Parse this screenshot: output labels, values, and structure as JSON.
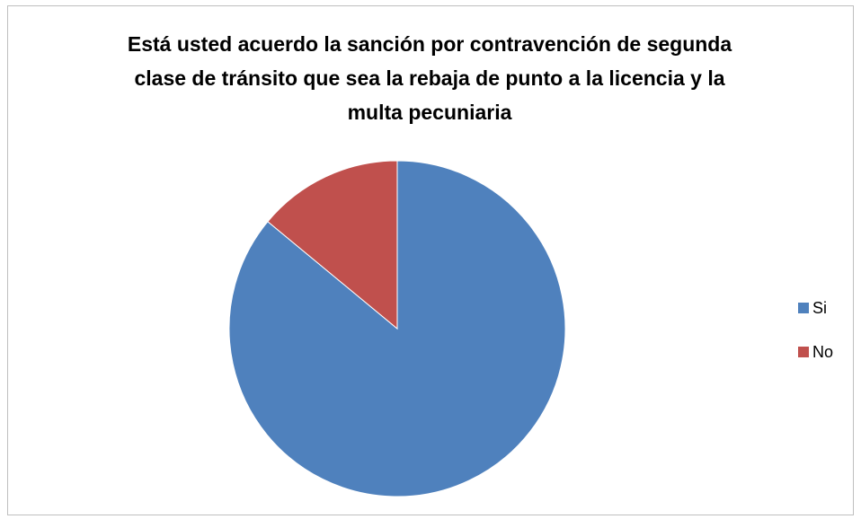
{
  "chart_data": {
    "type": "pie",
    "title": "Está usted acuerdo la sanción por contravención de segunda clase de tránsito que sea la rebaja de punto a la licencia y la multa pecuniaria",
    "categories": [
      "Si",
      "No"
    ],
    "values": [
      86,
      14
    ],
    "colors": [
      "#4f81bd",
      "#c0504d"
    ],
    "legend": "right"
  }
}
